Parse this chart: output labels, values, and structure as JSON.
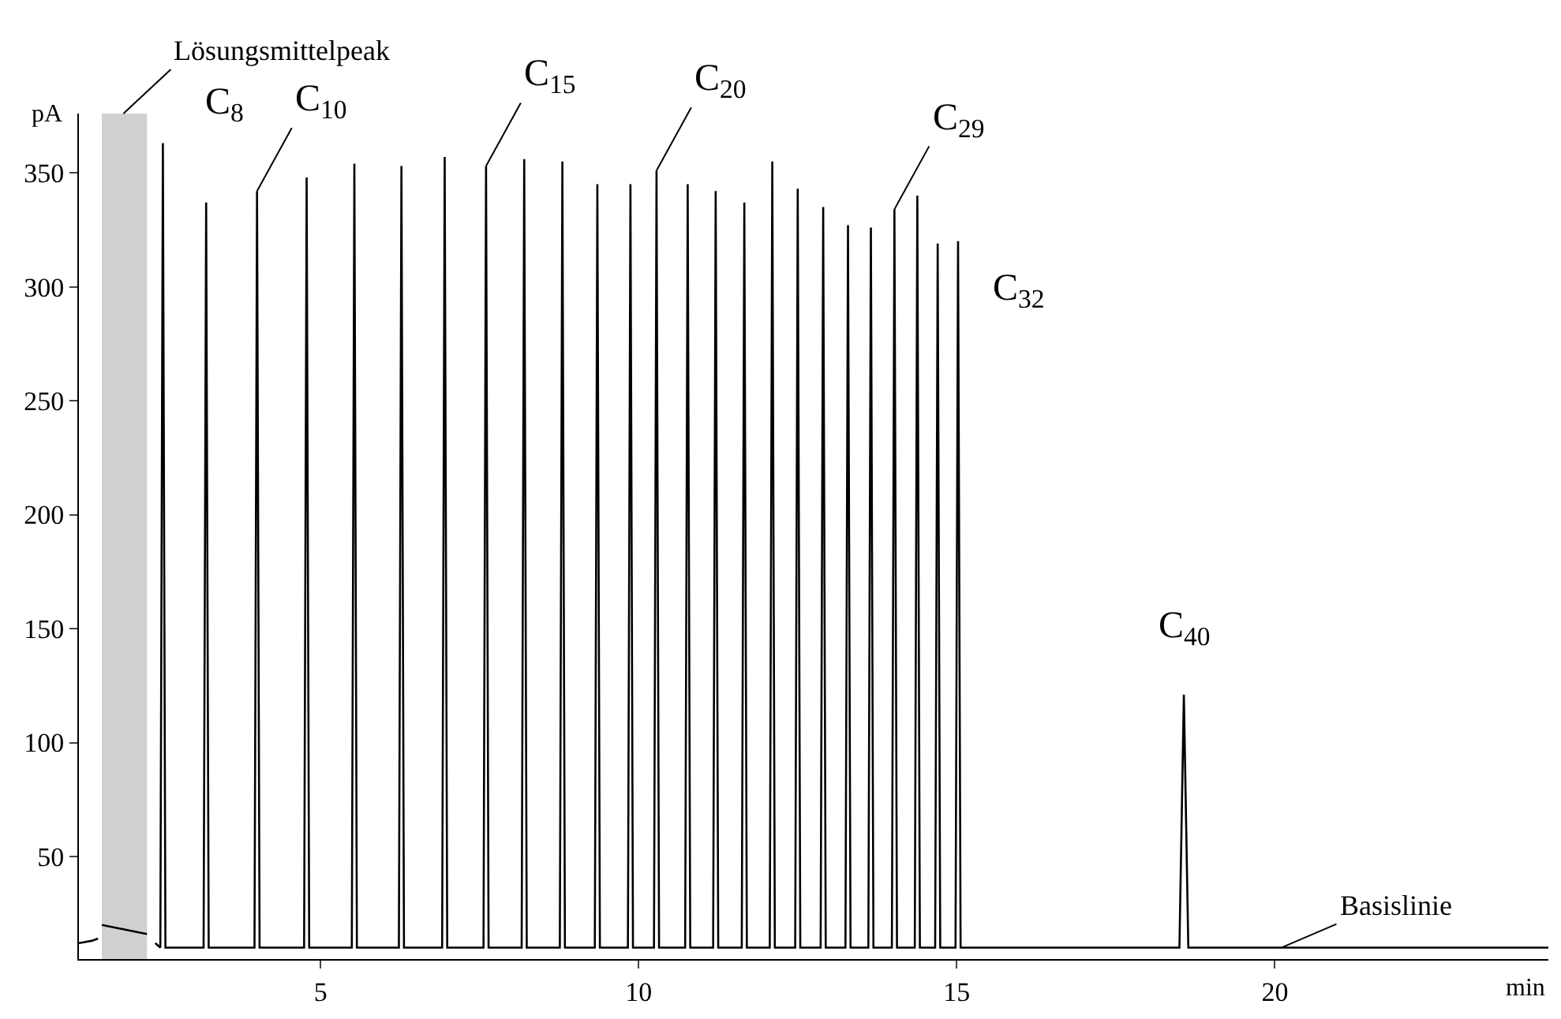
{
  "chart_data": {
    "type": "line",
    "xlabel": "min",
    "ylabel": "pA",
    "xlim": [
      1.2,
      24.3
    ],
    "ylim": [
      5,
      376
    ],
    "xticks": [
      5,
      10,
      15,
      20
    ],
    "yticks": [
      50,
      100,
      150,
      200,
      250,
      300,
      350
    ],
    "grid": false,
    "marker": "none",
    "line_style": "solid",
    "series": [
      {
        "color": "#000000",
        "x": [
          1.2,
          1.4,
          1.5,
          1.53,
          1.56,
          2.27,
          2.3,
          2.4,
          2.48,
          2.52,
          2.56,
          3.16,
          3.2,
          3.24,
          3.96,
          4.0,
          4.04,
          4.74,
          4.78,
          4.82,
          5.49,
          5.53,
          5.57,
          6.23,
          6.27,
          6.31,
          6.91,
          6.95,
          6.99,
          7.56,
          7.6,
          7.64,
          8.16,
          8.2,
          8.24,
          8.76,
          8.8,
          8.84,
          9.31,
          9.35,
          9.39,
          9.83,
          9.87,
          9.91,
          10.24,
          10.28,
          10.32,
          10.73,
          10.77,
          10.81,
          11.17,
          11.21,
          11.25,
          11.62,
          11.66,
          11.7,
          12.06,
          12.1,
          12.14,
          12.46,
          12.5,
          12.54,
          12.86,
          12.9,
          12.94,
          13.25,
          13.29,
          13.33,
          13.61,
          13.65,
          13.69,
          13.98,
          14.02,
          14.06,
          14.34,
          14.38,
          14.42,
          14.66,
          14.7,
          14.74,
          14.98,
          15.02,
          15.06,
          18.5,
          18.57,
          18.64,
          24.3
        ],
        "values": [
          12,
          13,
          14,
          null,
          20,
          16,
          null,
          12,
          10,
          363,
          10,
          10,
          337,
          10,
          10,
          342,
          10,
          10,
          348,
          10,
          10,
          354,
          10,
          10,
          353,
          10,
          10,
          357,
          10,
          10,
          353,
          10,
          10,
          356,
          10,
          10,
          355,
          10,
          10,
          345,
          10,
          10,
          345,
          10,
          10,
          351,
          10,
          10,
          345,
          10,
          10,
          342,
          10,
          10,
          337,
          10,
          10,
          355,
          10,
          10,
          343,
          10,
          10,
          335,
          10,
          10,
          327,
          10,
          10,
          326,
          10,
          10,
          334,
          10,
          10,
          340,
          10,
          10,
          319,
          10,
          10,
          320,
          10,
          10,
          121,
          10,
          10
        ]
      }
    ],
    "bands": [
      {
        "axis": "x",
        "from": 1.56,
        "to": 2.27,
        "color": "#d0d0d0"
      }
    ],
    "annotations": [
      {
        "text": "Lösungsmittelpeak",
        "x": 1.9,
        "y": 376
      },
      {
        "text": "C$_{8}$",
        "x": 2.52,
        "y": 363
      },
      {
        "text": "C$_{10}$",
        "x": 4.0,
        "y": 342
      },
      {
        "text": "C$_{15}$",
        "x": 7.6,
        "y": 353
      },
      {
        "text": "C$_{20}$",
        "x": 10.28,
        "y": 351
      },
      {
        "text": "C$_{29}$",
        "x": 14.02,
        "y": 334
      },
      {
        "text": "C$_{32}$",
        "x": 15.02,
        "y": 320
      },
      {
        "text": "C$_{40}$",
        "x": 18.57,
        "y": 121
      },
      {
        "text": "Basislinie",
        "x": 20.1,
        "y": 10
      }
    ]
  }
}
